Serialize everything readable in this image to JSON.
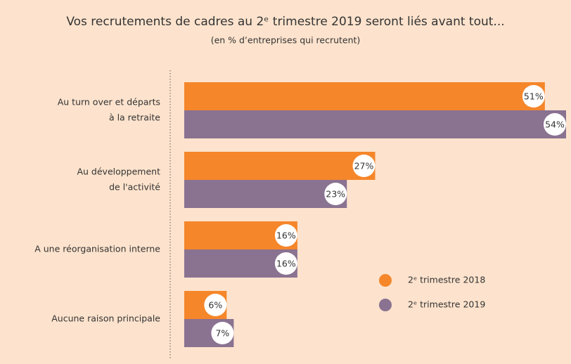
{
  "chart_data": {
    "type": "bar",
    "orientation": "horizontal",
    "title": "Vos recrutements de cadres au 2ᵉ trimestre 2019 seront liés avant tout...",
    "subtitle": "(en % d’entreprises qui recrutent)",
    "categories": [
      [
        "Au turn over et départs",
        "à la retraite"
      ],
      [
        "Au développement",
        "de l'activité"
      ],
      [
        "A une réorganisation interne"
      ],
      [
        "Aucune raison principale"
      ]
    ],
    "series": [
      {
        "name": "2ᵉ trimestre 2018",
        "color": "#f5862a",
        "values": [
          51,
          27,
          16,
          6
        ],
        "value_labels": [
          "51%",
          "27%",
          "16%",
          "6%"
        ]
      },
      {
        "name": "2ᵉ trimestre 2019",
        "color": "#8a7291",
        "values": [
          54,
          23,
          16,
          7
        ],
        "value_labels": [
          "54%",
          "23%",
          "16%",
          "7%"
        ]
      }
    ],
    "xlim": [
      0,
      54
    ]
  }
}
